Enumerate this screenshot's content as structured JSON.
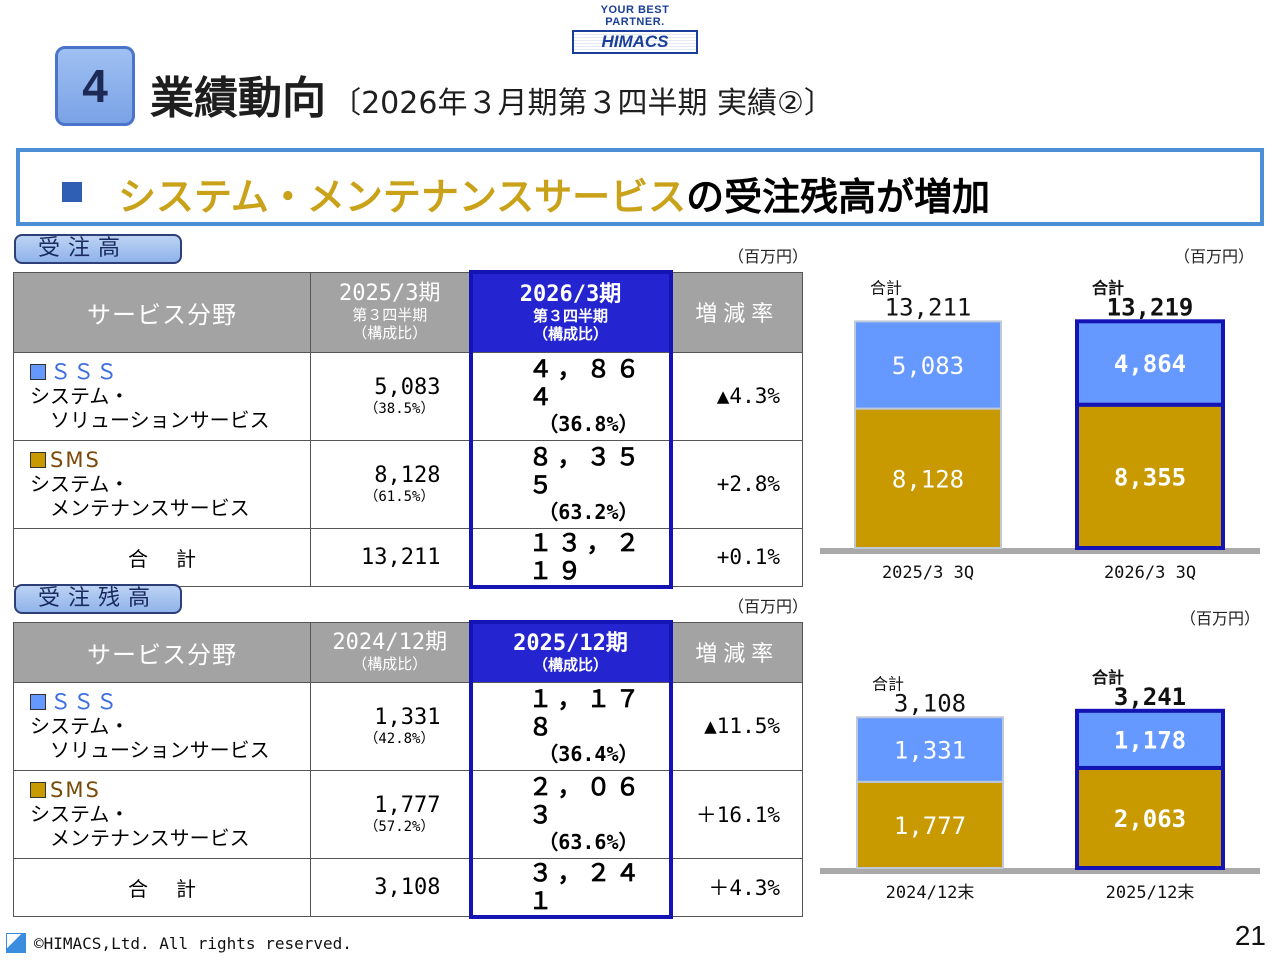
{
  "logo": {
    "tagline": "YOUR BEST PARTNER.",
    "name": "HIMACS"
  },
  "section": {
    "number": "4",
    "title": "業績動向",
    "subtitle": "〔2026年３月期第３四半期 実績②〕"
  },
  "headline": {
    "highlight": "システム・メンテナンスサービス",
    "rest": "の受注残高が増加"
  },
  "orders": {
    "label": "受注高",
    "unit": "（百万円）",
    "header": {
      "field": "サービス分野",
      "prev_period": "2025/3期",
      "prev_sub": "第３四半期",
      "prev_ratio": "（構成比）",
      "curr_period": "2026/3期",
      "curr_sub": "第３四半期",
      "curr_ratio": "（構成比）",
      "rate": "増減率"
    },
    "rows": [
      {
        "code": "ＳＳＳ",
        "name1": "システム・",
        "name2": "ソリューションサービス",
        "prev": "5,083",
        "prev_pct": "（38.5%）",
        "curr": "４，８６４",
        "curr_pct": "（36.8%）",
        "rate": "▲4.3%"
      },
      {
        "code": "SMS",
        "name1": "システム・",
        "name2": "メンテナンスサービス",
        "prev": "8,128",
        "prev_pct": "（61.5%）",
        "curr": "８，３５５",
        "curr_pct": "（63.2%）",
        "rate": "+2.8%"
      }
    ],
    "total": {
      "label": "合計",
      "prev": "13,211",
      "curr": "１３，２１９",
      "rate": "+0.1%"
    }
  },
  "backlog": {
    "label": "受注残高",
    "unit": "（百万円）",
    "header": {
      "field": "サービス分野",
      "prev_period": "2024/12期",
      "prev_ratio": "（構成比）",
      "curr_period": "2025/12期",
      "curr_ratio": "（構成比）",
      "rate": "増減率"
    },
    "rows": [
      {
        "code": "ＳＳＳ",
        "name1": "システム・",
        "name2": "ソリューションサービス",
        "prev": "1,331",
        "prev_pct": "（42.8%）",
        "curr": "１，１７８",
        "curr_pct": "（36.4%）",
        "rate": "▲11.5%"
      },
      {
        "code": "SMS",
        "name1": "システム・",
        "name2": "メンテナンスサービス",
        "prev": "1,777",
        "prev_pct": "（57.2%）",
        "curr": "２，０６３",
        "curr_pct": "（63.6%）",
        "rate": "＋16.1%"
      }
    ],
    "total": {
      "label": "合計",
      "prev": "3,108",
      "curr": "３，２４１",
      "rate": "＋4.3%"
    }
  },
  "colors": {
    "sss": "#6699ff",
    "sms": "#c89a00",
    "highlight": "#1414b4"
  },
  "chart_data": [
    {
      "type": "bar",
      "stacked": true,
      "unit": "（百万円）",
      "total_label": "合計",
      "categories": [
        "2025/3 3Q",
        "2026/3 3Q"
      ],
      "totals": [
        "13,211",
        "13,219"
      ],
      "series": [
        {
          "name": "SMS",
          "values": [
            8128,
            8355
          ],
          "labels": [
            "8,128",
            "8,355"
          ]
        },
        {
          "name": "SSS",
          "values": [
            5083,
            4864
          ],
          "labels": [
            "5,083",
            "4,864"
          ]
        }
      ],
      "highlight_index": 1
    },
    {
      "type": "bar",
      "stacked": true,
      "unit": "（百万円）",
      "total_label": "合計",
      "categories": [
        "2024/12末",
        "2025/12末"
      ],
      "totals": [
        "3,108",
        "3,241"
      ],
      "series": [
        {
          "name": "SMS",
          "values": [
            1777,
            2063
          ],
          "labels": [
            "1,777",
            "2,063"
          ]
        },
        {
          "name": "SSS",
          "values": [
            1331,
            1178
          ],
          "labels": [
            "1,331",
            "1,178"
          ]
        }
      ],
      "highlight_index": 1
    }
  ],
  "footer": {
    "copyright": "©HIMACS,Ltd. All rights reserved.",
    "page": "21"
  }
}
